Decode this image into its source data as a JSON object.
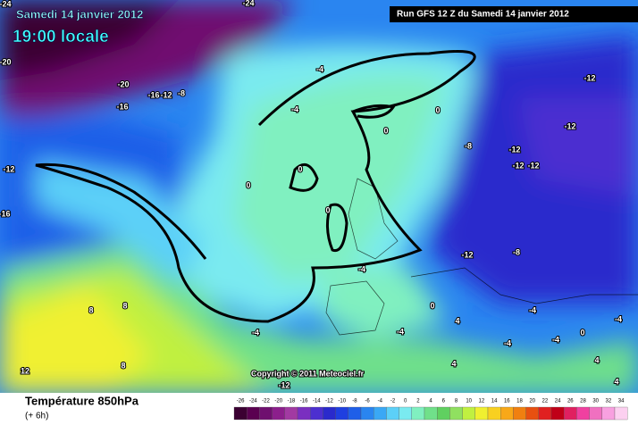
{
  "header": {
    "date": "Samedi 14 janvier 2012",
    "time": "19:00 locale",
    "run": "Run GFS 12 Z du Samedi 14 janvier 2012",
    "copyright": "Copyright © 2011 Meteociel.fr"
  },
  "contour_labels": [
    "-24",
    "-24",
    "-20",
    "-20",
    "-16",
    "-12",
    "-8",
    "-16",
    "-4",
    "-12",
    "-4",
    "0",
    "0",
    "-8",
    "-12",
    "-12",
    "-12",
    "-12",
    "-12",
    "0",
    "0",
    "-16",
    "0",
    "-12",
    "-8",
    "-4",
    "8",
    "8",
    "0",
    "-4",
    "0",
    "-4",
    "-4",
    "4",
    "-4",
    "4",
    "12",
    "8",
    "-12",
    "-4",
    "4",
    "4",
    "-4"
  ],
  "legend": {
    "title": "Température 850hPa",
    "subtitle": "(+ 6h)",
    "ticks": [
      -26,
      -24,
      -22,
      -20,
      -18,
      -16,
      -14,
      -12,
      -10,
      -8,
      -6,
      -4,
      -2,
      0,
      2,
      4,
      6,
      8,
      10,
      12,
      14,
      16,
      18,
      20,
      22,
      24,
      26,
      28,
      30,
      32,
      34
    ],
    "colors": [
      "#3b0032",
      "#5a0050",
      "#6f0f6f",
      "#8c1f8c",
      "#a23aa2",
      "#7a2fc0",
      "#4c2fd0",
      "#2a2acc",
      "#1f3fe0",
      "#1f5fe8",
      "#2a85f0",
      "#3aa8f5",
      "#5cd0f8",
      "#7aeaf0",
      "#80f0c0",
      "#70e08a",
      "#60d060",
      "#90e060",
      "#c0f040",
      "#f0f030",
      "#f8d020",
      "#f8a818",
      "#f08010",
      "#e85010",
      "#e02020",
      "#c00018",
      "#e02060",
      "#f040a0",
      "#f070c0",
      "#f8a0e0",
      "#fcd0f0"
    ]
  }
}
